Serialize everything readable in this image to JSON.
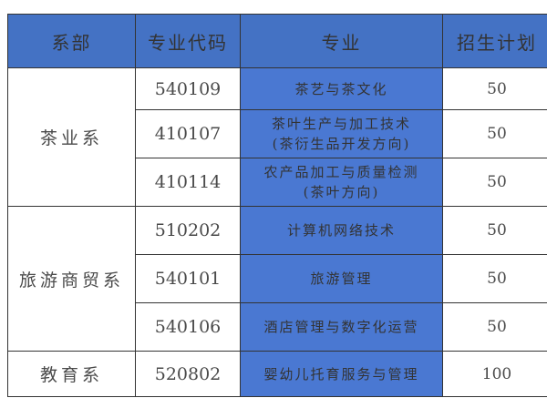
{
  "colors": {
    "header_bg": "#4472c4",
    "major_bg": "#4a78d2"
  },
  "headers": [
    "系部",
    "专业代码",
    "专业",
    "招生计划"
  ],
  "departments": [
    {
      "name": "茶业系",
      "rows": [
        {
          "code": "540109",
          "major": "茶艺与茶文化",
          "major_sub": "",
          "plan": "50"
        },
        {
          "code": "410107",
          "major": "茶叶生产与加工技术",
          "major_sub": "(茶衍生品开发方向)",
          "plan": "50"
        },
        {
          "code": "410114",
          "major": "农产品加工与质量检测",
          "major_sub": "(茶叶方向)",
          "plan": "50"
        }
      ]
    },
    {
      "name": "旅游商贸系",
      "rows": [
        {
          "code": "510202",
          "major": "计算机网络技术",
          "major_sub": "",
          "plan": "50"
        },
        {
          "code": "540101",
          "major": "旅游管理",
          "major_sub": "",
          "plan": "50"
        },
        {
          "code": "540106",
          "major": "酒店管理与数字化运营",
          "major_sub": "",
          "plan": "50"
        }
      ]
    },
    {
      "name": "教育系",
      "rows": [
        {
          "code": "520802",
          "major": "婴幼儿托育服务与管理",
          "major_sub": "",
          "plan": "100"
        }
      ]
    }
  ]
}
